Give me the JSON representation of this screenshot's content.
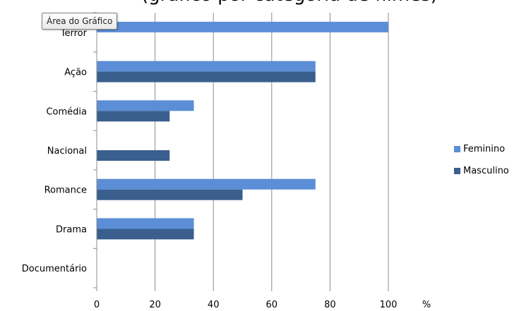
{
  "tooltip": "Área do Gráfico",
  "title_fragment": "(gráfico por categoria de filmes)",
  "colors": {
    "Feminino": "#5b8ed6",
    "Masculino": "#3a5f8e",
    "grid": "#8c8c8c"
  },
  "chart_data": {
    "type": "bar",
    "orientation": "horizontal",
    "categories": [
      "Terror",
      "Ação",
      "Comédia",
      "Nacional",
      "Romance",
      "Drama",
      "Documentário"
    ],
    "series": [
      {
        "name": "Feminino",
        "values": [
          100,
          75,
          33.3,
          0,
          75,
          33.3,
          0
        ]
      },
      {
        "name": "Masculino",
        "values": [
          0,
          75,
          25,
          25,
          50,
          33.3,
          0
        ]
      }
    ],
    "x_ticks": [
      "0",
      "20",
      "40",
      "60",
      "80",
      "100"
    ],
    "x_unit": "%",
    "xlim": [
      0,
      100
    ],
    "grid": true,
    "legend_position": "right"
  }
}
